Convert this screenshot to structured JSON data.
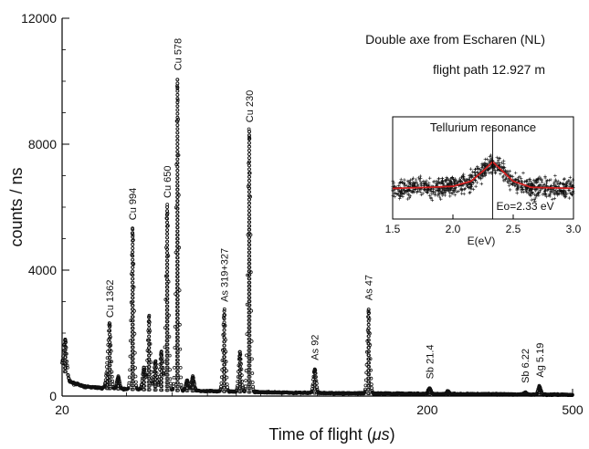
{
  "chart_data": [
    {
      "type": "scatter",
      "xlabel": "Time of flight (",
      "xlabel_unit": "μs",
      "xlabel_close": ")",
      "ylabel": "counts / ns",
      "xscale": "log",
      "xlim": [
        20,
        500
      ],
      "ylim": [
        0,
        12000
      ],
      "xticks": [
        20,
        200,
        500
      ],
      "xtick_labels": [
        "20",
        "200",
        "500"
      ],
      "yticks": [
        0,
        4000,
        8000,
        12000
      ],
      "ytick_labels": [
        "0",
        "4000",
        "8000",
        "12000"
      ],
      "annotations": [
        "Double axe from Escharen (NL)",
        "flight path 12.927 m"
      ],
      "marker": "open-circle",
      "baseline": [
        {
          "x": 20,
          "y": 1000
        },
        {
          "x": 21,
          "y": 450
        },
        {
          "x": 23,
          "y": 300
        },
        {
          "x": 26,
          "y": 250
        },
        {
          "x": 30,
          "y": 220
        },
        {
          "x": 35,
          "y": 200
        },
        {
          "x": 45,
          "y": 170
        },
        {
          "x": 60,
          "y": 140
        },
        {
          "x": 80,
          "y": 110
        },
        {
          "x": 120,
          "y": 90
        },
        {
          "x": 200,
          "y": 70
        },
        {
          "x": 300,
          "y": 60
        },
        {
          "x": 500,
          "y": 40
        }
      ],
      "peaks": [
        {
          "label": "",
          "x": 20.4,
          "y": 1800
        },
        {
          "label": "Cu 1362",
          "x": 27.0,
          "y": 2200
        },
        {
          "label": "",
          "x": 26.6,
          "y": 800
        },
        {
          "label": "",
          "x": 28.5,
          "y": 600
        },
        {
          "label": "Cu 994",
          "x": 31.2,
          "y": 5300
        },
        {
          "label": "",
          "x": 33.5,
          "y": 900
        },
        {
          "label": "",
          "x": 34.6,
          "y": 2500
        },
        {
          "label": "",
          "x": 36.0,
          "y": 1100
        },
        {
          "label": "",
          "x": 37.4,
          "y": 1400
        },
        {
          "label": "Cu 650",
          "x": 38.8,
          "y": 6000
        },
        {
          "label": "Cu 578",
          "x": 41.4,
          "y": 10050
        },
        {
          "label": "",
          "x": 44.0,
          "y": 500
        },
        {
          "label": "",
          "x": 45.6,
          "y": 600
        },
        {
          "label": "As 319+327",
          "x": 55.6,
          "y": 2700
        },
        {
          "label": "",
          "x": 61.4,
          "y": 1400
        },
        {
          "label": "Cu 230",
          "x": 65.1,
          "y": 8400
        },
        {
          "label": "As 92",
          "x": 98.4,
          "y": 850
        },
        {
          "label": "As 47",
          "x": 138.2,
          "y": 2750
        },
        {
          "label": "Sb 21.4",
          "x": 202.9,
          "y": 250
        },
        {
          "label": "",
          "x": 228.0,
          "y": 150
        },
        {
          "label": "Sb 6.22",
          "x": 371.0,
          "y": 120
        },
        {
          "label": "Ag 5.19",
          "x": 405.9,
          "y": 300
        }
      ]
    },
    {
      "type": "scatter",
      "title": "Tellurium resonance",
      "xlabel": "E(eV)",
      "xlim": [
        1.5,
        3.0
      ],
      "xticks": [
        1.5,
        2.0,
        2.5,
        3.0
      ],
      "xtick_labels": [
        "1.5",
        "2.0",
        "2.5",
        "3.0"
      ],
      "marker": "plus",
      "annotation": "Eo=2.33 eV",
      "resonance_energy": 2.33,
      "fit": [
        {
          "x": 1.5,
          "y": 0.3
        },
        {
          "x": 1.8,
          "y": 0.31
        },
        {
          "x": 2.0,
          "y": 0.32
        },
        {
          "x": 2.15,
          "y": 0.37
        },
        {
          "x": 2.25,
          "y": 0.47
        },
        {
          "x": 2.33,
          "y": 0.56
        },
        {
          "x": 2.41,
          "y": 0.47
        },
        {
          "x": 2.5,
          "y": 0.37
        },
        {
          "x": 2.65,
          "y": 0.31
        },
        {
          "x": 3.0,
          "y": 0.3
        }
      ]
    }
  ]
}
